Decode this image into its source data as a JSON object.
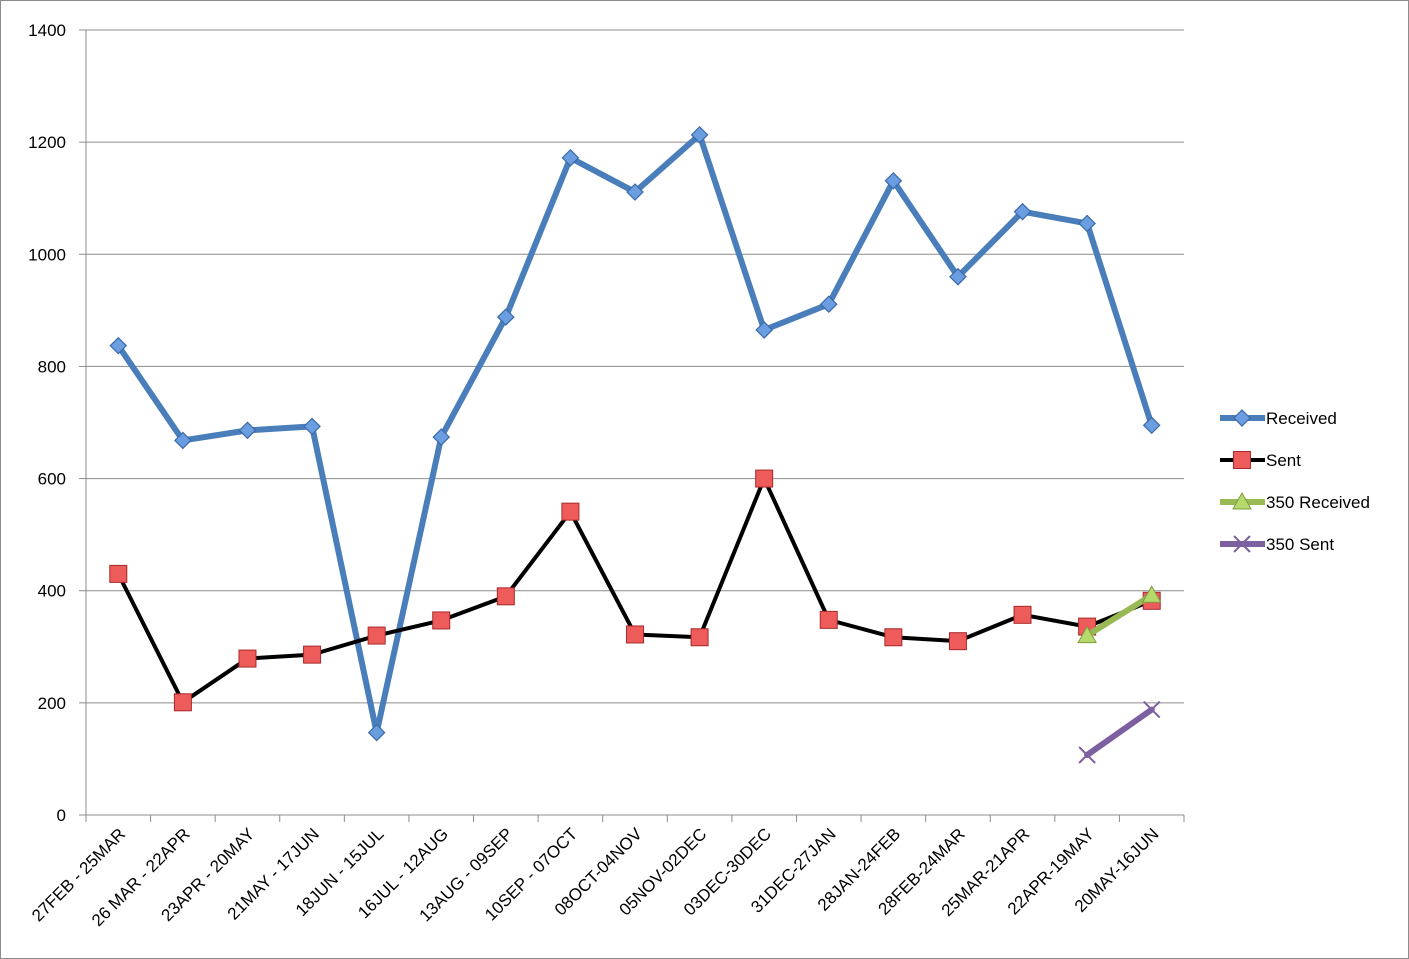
{
  "chart_data": {
    "type": "line",
    "title": "",
    "xlabel": "",
    "ylabel": "",
    "ylim": [
      0,
      1400
    ],
    "yticks": [
      0,
      200,
      400,
      600,
      800,
      1000,
      1200,
      1400
    ],
    "grid": "horizontal",
    "legend_position": "right",
    "categories": [
      "27FEB - 25MAR",
      "26 MAR - 22APR",
      "23APR - 20MAY",
      "21MAY - 17JUN",
      "18JUN - 15JUL",
      "16JUL - 12AUG",
      "13AUG - 09SEP",
      "10SEP - 07OCT",
      "08OCT-04NOV",
      "05NOV-02DEC",
      "03DEC-30DEC",
      "31DEC-27JAN",
      "28JAN-24FEB",
      "28FEB-24MAR",
      "25MAR-21APR",
      "22APR-19MAY",
      "20MAY-16JUN"
    ],
    "series": [
      {
        "name": "Received",
        "color": "#4a7ebb",
        "marker": "diamond",
        "values": [
          837,
          668,
          686,
          693,
          147,
          674,
          888,
          1172,
          1111,
          1213,
          865,
          911,
          1131,
          960,
          1076,
          1055,
          695
        ]
      },
      {
        "name": "Sent",
        "color": "#000000",
        "marker_color": "#e8474a",
        "marker": "square",
        "values": [
          430,
          201,
          279,
          286,
          320,
          347,
          390,
          541,
          322,
          317,
          600,
          348,
          317,
          310,
          357,
          336,
          382
        ]
      },
      {
        "name": "350 Received",
        "color": "#98b954",
        "marker": "triangle",
        "values": [
          null,
          null,
          null,
          null,
          null,
          null,
          null,
          null,
          null,
          null,
          null,
          null,
          null,
          null,
          null,
          320,
          392
        ]
      },
      {
        "name": "350 Sent",
        "color": "#7d60a0",
        "marker": "x",
        "values": [
          null,
          null,
          null,
          null,
          null,
          null,
          null,
          null,
          null,
          null,
          null,
          null,
          null,
          null,
          null,
          107,
          188
        ]
      }
    ]
  }
}
